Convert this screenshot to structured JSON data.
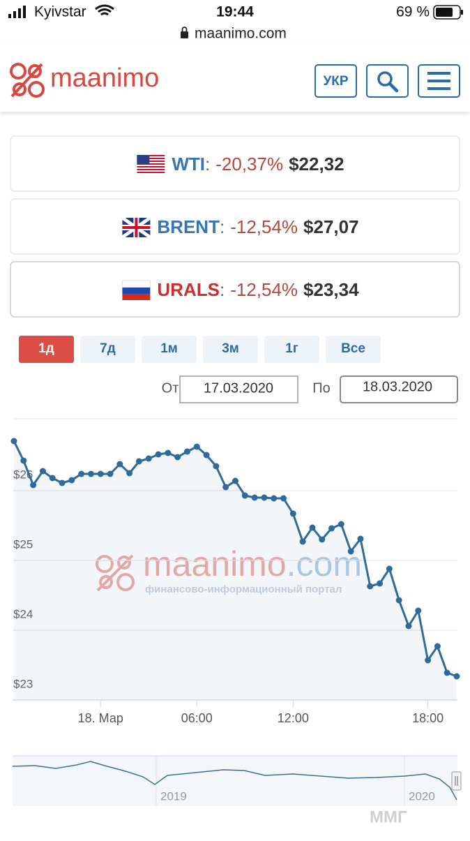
{
  "status_bar": {
    "carrier": "Kyivstar",
    "time": "19:44",
    "battery": "69 %",
    "url": "maanimo.com"
  },
  "header": {
    "logo": "maanimo",
    "language_button": "УКР"
  },
  "quotes": [
    {
      "name": "WTI",
      "separator": ":",
      "change": "-20,37%",
      "price": "$22,32"
    },
    {
      "name": "BRENT",
      "separator": ":",
      "change": "-12,54%",
      "price": "$27,07"
    },
    {
      "name": "URALS",
      "separator": ":",
      "change": "-12,54%",
      "price": "$23,34"
    }
  ],
  "range_buttons": [
    "1д",
    "7д",
    "1м",
    "3м",
    "1г",
    "Все"
  ],
  "date_range": {
    "from_label": "От",
    "from": "17.03.2020",
    "to_label": "По",
    "to": "18.03.2020"
  },
  "chart_data": {
    "type": "line",
    "color": "#2f6b9a",
    "grid": true,
    "categories": [
      null,
      null,
      null,
      null,
      null,
      null,
      null,
      null,
      null,
      "18. Мар",
      null,
      null,
      null,
      null,
      null,
      null,
      null,
      null,
      null,
      "06:00",
      null,
      null,
      null,
      null,
      null,
      null,
      null,
      null,
      null,
      "12:00",
      null,
      null,
      null,
      null,
      null,
      null,
      null,
      null,
      null,
      null,
      null,
      null,
      null,
      "18:00",
      null,
      null,
      null
    ],
    "values": [
      26.71,
      26.43,
      26.08,
      26.28,
      26.18,
      26.11,
      26.15,
      26.24,
      26.24,
      26.24,
      26.24,
      26.38,
      26.25,
      26.42,
      26.46,
      26.52,
      26.54,
      26.48,
      26.56,
      26.63,
      26.51,
      26.35,
      26.05,
      26.14,
      25.93,
      25.9,
      25.9,
      25.89,
      25.89,
      25.67,
      25.27,
      25.47,
      25.3,
      25.46,
      25.52,
      25.13,
      25.31,
      24.63,
      24.67,
      24.88,
      24.43,
      24.06,
      24.28,
      23.57,
      23.77,
      23.39,
      23.34
    ],
    "ylim": [
      23,
      27
    ],
    "yticks": [
      {
        "value": 23,
        "label": "$23"
      },
      {
        "value": 24,
        "label": "$24"
      },
      {
        "value": 25,
        "label": "$25"
      },
      {
        "value": 26,
        "label": "$26"
      }
    ],
    "watermark": {
      "brand": "maanimo",
      "domain": ".com",
      "tagline": "финансово-информационный портал"
    },
    "navigator_labels": [
      "2019",
      "2020"
    ]
  },
  "corner_watermark": "ММГ"
}
